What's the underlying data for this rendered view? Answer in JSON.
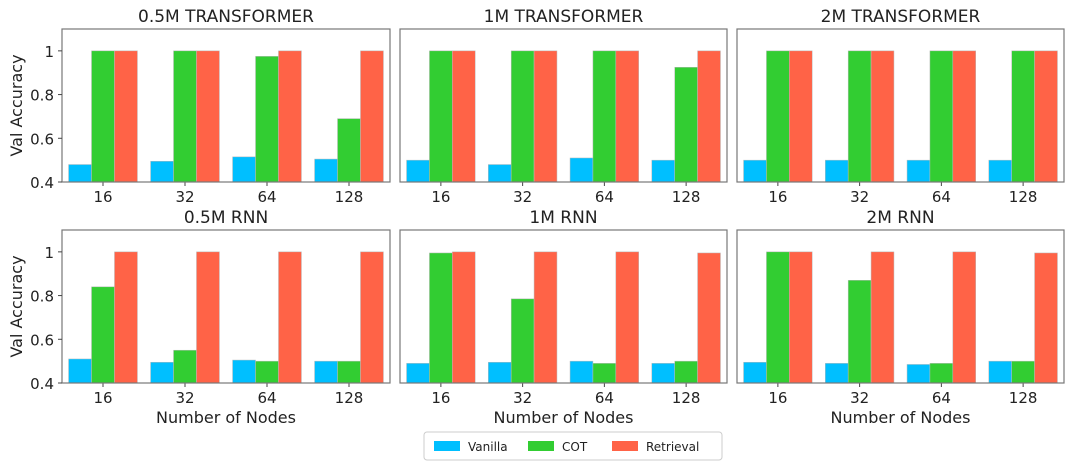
{
  "chart_data": {
    "type": "bar",
    "legend": {
      "placement": "bottom-center",
      "entries": [
        "Vanilla",
        "COT",
        "Retrieval"
      ]
    },
    "colors": {
      "Vanilla": "#00BFFF",
      "COT": "#32CD32",
      "Retrieval": "#FF6347"
    },
    "ylabel": "Val Accuracy",
    "xlabel": "Number of Nodes",
    "ylim": [
      0.4,
      1.1
    ],
    "yticks": [
      0.4,
      0.6,
      0.8,
      1.0
    ],
    "ytick_labels": [
      "0.4",
      "0.6",
      "0.8",
      "1"
    ],
    "categories": [
      "16",
      "32",
      "64",
      "128"
    ],
    "panels": [
      {
        "title": "0.5M TRANSFORMER",
        "series": [
          {
            "name": "Vanilla",
            "values": [
              0.48,
              0.495,
              0.515,
              0.505
            ]
          },
          {
            "name": "COT",
            "values": [
              1.0,
              1.0,
              0.975,
              0.69
            ]
          },
          {
            "name": "Retrieval",
            "values": [
              1.0,
              1.0,
              1.0,
              1.0
            ]
          }
        ]
      },
      {
        "title": "1M TRANSFORMER",
        "series": [
          {
            "name": "Vanilla",
            "values": [
              0.5,
              0.48,
              0.51,
              0.5
            ]
          },
          {
            "name": "COT",
            "values": [
              1.0,
              1.0,
              1.0,
              0.925
            ]
          },
          {
            "name": "Retrieval",
            "values": [
              1.0,
              1.0,
              1.0,
              1.0
            ]
          }
        ]
      },
      {
        "title": "2M TRANSFORMER",
        "series": [
          {
            "name": "Vanilla",
            "values": [
              0.5,
              0.5,
              0.5,
              0.5
            ]
          },
          {
            "name": "COT",
            "values": [
              1.0,
              1.0,
              1.0,
              1.0
            ]
          },
          {
            "name": "Retrieval",
            "values": [
              1.0,
              1.0,
              1.0,
              1.0
            ]
          }
        ]
      },
      {
        "title": "0.5M RNN",
        "series": [
          {
            "name": "Vanilla",
            "values": [
              0.51,
              0.495,
              0.505,
              0.5
            ]
          },
          {
            "name": "COT",
            "values": [
              0.84,
              0.55,
              0.5,
              0.5
            ]
          },
          {
            "name": "Retrieval",
            "values": [
              1.0,
              1.0,
              1.0,
              1.0
            ]
          }
        ]
      },
      {
        "title": "1M RNN",
        "series": [
          {
            "name": "Vanilla",
            "values": [
              0.49,
              0.495,
              0.5,
              0.49
            ]
          },
          {
            "name": "COT",
            "values": [
              0.995,
              0.785,
              0.49,
              0.5
            ]
          },
          {
            "name": "Retrieval",
            "values": [
              1.0,
              1.0,
              1.0,
              0.995
            ]
          }
        ]
      },
      {
        "title": "2M RNN",
        "series": [
          {
            "name": "Vanilla",
            "values": [
              0.495,
              0.49,
              0.485,
              0.5
            ]
          },
          {
            "name": "COT",
            "values": [
              1.0,
              0.87,
              0.49,
              0.5
            ]
          },
          {
            "name": "Retrieval",
            "values": [
              1.0,
              1.0,
              1.0,
              0.995
            ]
          }
        ]
      }
    ]
  }
}
